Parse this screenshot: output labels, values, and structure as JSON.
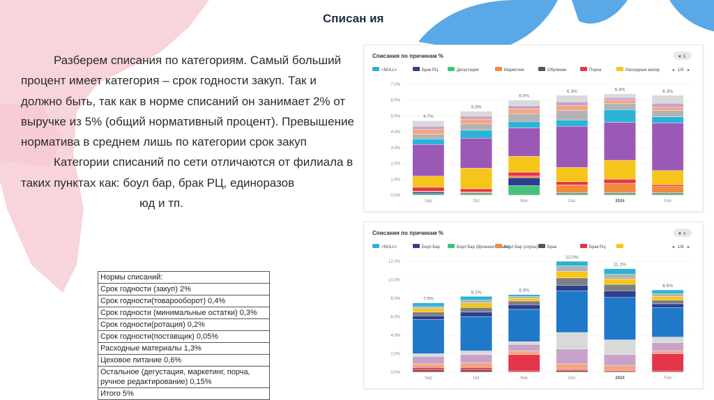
{
  "slide": {
    "title": "Списан ия",
    "paragraph1": "Разберем списания по категориям. Самый больший процент имеет категория – срок годности закуп. Так и должно быть, так как в норме списаний он занимает 2% от выручке из 5% (общий нормативный процент). Превышение норматива в среднем лишь по категории срок закуп",
    "paragraph2_start": "Категории списаний по сети отличаются от филиала в таких пунктах как: боул бар, брак РЦ, единоразов",
    "paragraph2_end": "юд и тп."
  },
  "norms_table": {
    "rows": [
      "Нормы списаний:",
      "Срок годности (закуп) 2%",
      "Срок годности(товарооборот) 0,4%",
      "Срок годности (минимальные остатки) 0,3%",
      "Срок годности(ротация) 0,2%",
      "Срок годности(поставщик) 0,05%",
      "Расходные материалы 1,3%",
      "Цеховое питание 0,6%",
      "Остальное (дегустация, маркетинг, порча, ручное редактирование) 0,15%",
      "Итого 5%"
    ]
  },
  "chart_data": [
    {
      "type": "bar",
      "stacked": true,
      "title": "Списания по причинам %",
      "badge": "5",
      "pager": "1/5",
      "categories": [
        "Sep",
        "Oct",
        "Nov",
        "Dec",
        "2024",
        "Feb"
      ],
      "totals": [
        "4.7%",
        "5.3%",
        "6.0%",
        "6.3%",
        "6.4%",
        "6.3%"
      ],
      "yticks": [
        "0.0%",
        "1.0%",
        "2.0%",
        "3.0%",
        "4.0%",
        "5.0%",
        "6.0%",
        "7.0%"
      ],
      "ylim": [
        0,
        7
      ],
      "legend": [
        {
          "name": "<NULL>",
          "color": "#2bb3d6"
        },
        {
          "name": "Брак РЦ",
          "color": "#2d3f8f"
        },
        {
          "name": "Дегустация",
          "color": "#48c27a"
        },
        {
          "name": "Маркетинг",
          "color": "#f08a3c"
        },
        {
          "name": "Обучение",
          "color": "#555555"
        },
        {
          "name": "Порча",
          "color": "#e6344a"
        },
        {
          "name": "Расходные матер",
          "color": "#f6c519"
        }
      ],
      "series": [
        {
          "color": "#48c27a",
          "values": [
            0.1,
            0.1,
            0.6,
            0.1,
            0.1,
            0.1
          ]
        },
        {
          "color": "#2d3f8f",
          "values": [
            0.1,
            0.05,
            0.5,
            0.05,
            0.05,
            0.05
          ]
        },
        {
          "color": "#f08a3c",
          "values": [
            0.05,
            0.05,
            0.1,
            0.5,
            0.6,
            0.4
          ]
        },
        {
          "color": "#e6344a",
          "values": [
            0.25,
            0.2,
            0.25,
            0.2,
            0.25,
            0.1
          ]
        },
        {
          "color": "#f6c519",
          "values": [
            0.7,
            1.3,
            1.0,
            0.9,
            1.2,
            0.9
          ]
        },
        {
          "color": "#9b59b6",
          "values": [
            2.0,
            1.9,
            1.8,
            2.6,
            2.4,
            3.0
          ]
        },
        {
          "color": "#2bb3d6",
          "values": [
            0.35,
            0.5,
            0.4,
            0.4,
            0.8,
            0.4
          ]
        },
        {
          "color": "#b3b3b3",
          "values": [
            0.3,
            0.4,
            0.5,
            0.6,
            0.4,
            0.4
          ]
        },
        {
          "color": "#f4a582",
          "values": [
            0.3,
            0.3,
            0.3,
            0.3,
            0.2,
            0.2
          ]
        },
        {
          "color": "#c8a2c8",
          "values": [
            0.2,
            0.2,
            0.2,
            0.25,
            0.15,
            0.25
          ]
        },
        {
          "color": "#d9d9d9",
          "values": [
            0.35,
            0.3,
            0.35,
            0.4,
            0.25,
            0.5
          ]
        }
      ]
    },
    {
      "type": "bar",
      "stacked": true,
      "title": "Списания по причинам %",
      "badge": "4",
      "pager": "1/8",
      "categories": [
        "Sep",
        "Oct",
        "Nov",
        "Dec",
        "2024",
        "Feb"
      ],
      "totals": [
        "7.5%",
        "8.2%",
        "8.3%",
        "12.0%",
        "11.2%",
        "8.9%"
      ],
      "yticks": [
        "0.0%",
        "2.0%",
        "4.0%",
        "6.0%",
        "8.0%",
        "10.0%",
        "12.0%"
      ],
      "ylim": [
        0,
        12
      ],
      "legend": [
        {
          "name": "<NULL>",
          "color": "#2bb3d6"
        },
        {
          "name": "Боул Бар",
          "color": "#2d3f8f"
        },
        {
          "name": "Боул Бар (брошено в зале)",
          "color": "#48c27a"
        },
        {
          "name": "Боул Бар (соусы)",
          "color": "#f08a3c"
        },
        {
          "name": "Брак",
          "color": "#555555"
        },
        {
          "name": "Брак РЦ",
          "color": "#e6344a"
        },
        {
          "name": "",
          "color": "#f6c519"
        }
      ],
      "series": [
        {
          "color": "#8c564b",
          "values": [
            0.3,
            0.3,
            0.1,
            0.2,
            0.1,
            0.1
          ]
        },
        {
          "color": "#e6344a",
          "values": [
            0.2,
            0.2,
            1.8,
            0.1,
            0.1,
            1.9
          ]
        },
        {
          "color": "#f4a582",
          "values": [
            0.4,
            0.5,
            0.4,
            0.6,
            0.5,
            0.3
          ]
        },
        {
          "color": "#c8a2c8",
          "values": [
            0.8,
            0.9,
            0.7,
            1.6,
            1.2,
            0.9
          ]
        },
        {
          "color": "#d9d9d9",
          "values": [
            0.3,
            0.4,
            0.3,
            1.8,
            1.6,
            0.6
          ]
        },
        {
          "color": "#1f78c8",
          "values": [
            3.7,
            3.7,
            3.5,
            4.5,
            4.6,
            3.2
          ]
        },
        {
          "color": "#2d3f8f",
          "values": [
            0.4,
            0.5,
            0.5,
            0.6,
            0.7,
            0.4
          ]
        },
        {
          "color": "#7f7f7f",
          "values": [
            0.4,
            0.5,
            0.4,
            0.8,
            0.7,
            0.4
          ]
        },
        {
          "color": "#f6c519",
          "values": [
            0.4,
            0.5,
            0.3,
            0.7,
            0.6,
            0.4
          ]
        },
        {
          "color": "#b3b3b3",
          "values": [
            0.2,
            0.3,
            0.2,
            0.6,
            0.5,
            0.3
          ]
        },
        {
          "color": "#2bb3d6",
          "values": [
            0.4,
            0.4,
            0.2,
            0.5,
            0.6,
            0.4
          ]
        }
      ]
    }
  ]
}
